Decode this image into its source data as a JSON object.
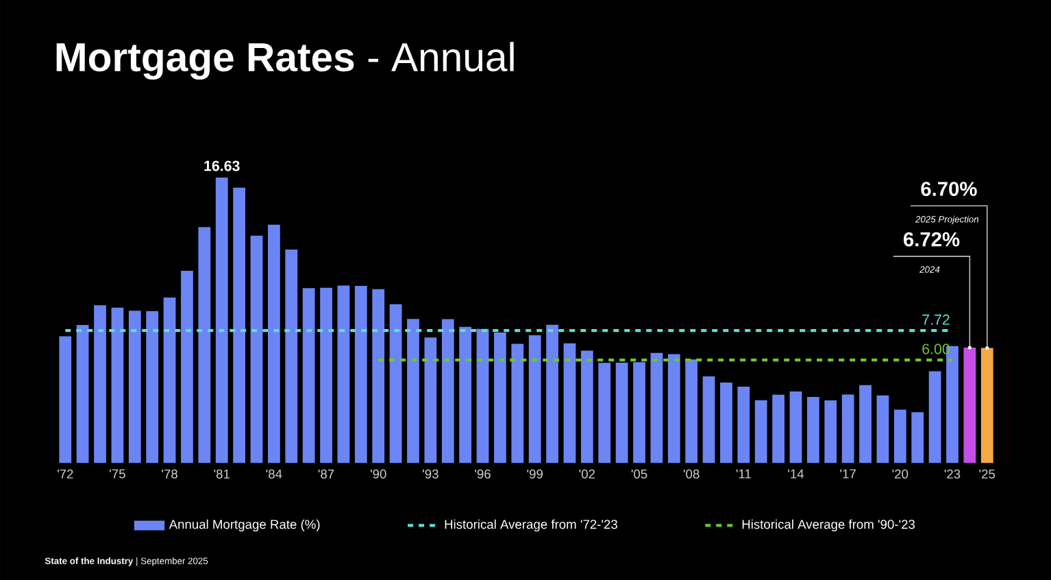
{
  "chart_data": {
    "type": "bar",
    "title": "**Mortgage Rates** - Annual",
    "categories": [
      "'72",
      null,
      null,
      "'75",
      null,
      null,
      "'78",
      null,
      null,
      "'81",
      null,
      null,
      "'84",
      null,
      null,
      "'87",
      null,
      null,
      "'90",
      null,
      null,
      "'93",
      null,
      null,
      "'96",
      null,
      null,
      "'99",
      null,
      null,
      "'02",
      null,
      null,
      "'05",
      null,
      null,
      "'08",
      null,
      null,
      "'11",
      null,
      null,
      "'14",
      null,
      null,
      "'17",
      null,
      null,
      "'20",
      null,
      null,
      "'23",
      null,
      "'25"
    ],
    "series": [
      {
        "name": "Annual Mortgage Rate (%)",
        "color": "#6b85f5",
        "colors": [
          "#6b85f5",
          "#6b85f5",
          "#6b85f5",
          "#6b85f5",
          "#6b85f5",
          "#6b85f5",
          "#6b85f5",
          "#6b85f5",
          "#6b85f5",
          "#6b85f5",
          "#6b85f5",
          "#6b85f5",
          "#6b85f5",
          "#6b85f5",
          "#6b85f5",
          "#6b85f5",
          "#6b85f5",
          "#6b85f5",
          "#6b85f5",
          "#6b85f5",
          "#6b85f5",
          "#6b85f5",
          "#6b85f5",
          "#6b85f5",
          "#6b85f5",
          "#6b85f5",
          "#6b85f5",
          "#6b85f5",
          "#6b85f5",
          "#6b85f5",
          "#6b85f5",
          "#6b85f5",
          "#6b85f5",
          "#6b85f5",
          "#6b85f5",
          "#6b85f5",
          "#6b85f5",
          "#6b85f5",
          "#6b85f5",
          "#6b85f5",
          "#6b85f5",
          "#6b85f5",
          "#6b85f5",
          "#6b85f5",
          "#6b85f5",
          "#6b85f5",
          "#6b85f5",
          "#6b85f5",
          "#6b85f5",
          "#6b85f5",
          "#6b85f5",
          "#6b85f5",
          "#c54ee8",
          "#f5a944"
        ],
        "values": [
          7.38,
          8.04,
          9.19,
          9.05,
          8.87,
          8.85,
          9.64,
          11.2,
          13.74,
          16.63,
          16.04,
          13.24,
          13.88,
          12.43,
          10.19,
          10.21,
          10.34,
          10.32,
          10.13,
          9.25,
          8.39,
          7.31,
          8.38,
          7.93,
          7.81,
          7.6,
          6.94,
          7.44,
          8.05,
          6.97,
          6.54,
          5.83,
          5.84,
          5.87,
          6.41,
          6.34,
          6.03,
          5.04,
          4.69,
          4.45,
          3.66,
          3.98,
          4.17,
          3.85,
          3.65,
          3.99,
          4.54,
          3.94,
          3.11,
          2.96,
          5.34,
          6.81,
          6.72,
          6.7
        ],
        "value_labels": [
          null,
          null,
          null,
          null,
          null,
          null,
          null,
          null,
          null,
          "16.63",
          null,
          null,
          null,
          null,
          null,
          null,
          null,
          null,
          null,
          null,
          null,
          null,
          null,
          null,
          null,
          null,
          null,
          null,
          null,
          null,
          null,
          null,
          null,
          null,
          null,
          null,
          null,
          null,
          null,
          null,
          null,
          null,
          null,
          null,
          null,
          null,
          null,
          null,
          null,
          null,
          null,
          null,
          "6.72%",
          "6.70%"
        ]
      },
      {
        "name": "Historical Average from '72-'23",
        "type": "line",
        "color": "#5fe0d0",
        "line_style": "dashed",
        "values": [
          7.72,
          7.72,
          7.72,
          7.72,
          7.72,
          7.72,
          7.72,
          7.72,
          7.72,
          7.72,
          7.72,
          7.72,
          7.72,
          7.72,
          7.72,
          7.72,
          7.72,
          7.72,
          7.72,
          7.72,
          7.72,
          7.72,
          7.72,
          7.72,
          7.72,
          7.72,
          7.72,
          7.72,
          7.72,
          7.72,
          7.72,
          7.72,
          7.72,
          7.72,
          7.72,
          7.72,
          7.72,
          7.72,
          7.72,
          7.72,
          7.72,
          7.72,
          7.72,
          7.72,
          7.72,
          7.72,
          7.72,
          7.72,
          7.72,
          7.72,
          7.72,
          7.72,
          null,
          null
        ],
        "value_labels": [
          null,
          null,
          null,
          null,
          null,
          null,
          null,
          null,
          null,
          null,
          null,
          null,
          null,
          null,
          null,
          null,
          null,
          null,
          null,
          null,
          null,
          null,
          null,
          null,
          null,
          null,
          null,
          null,
          null,
          null,
          null,
          null,
          null,
          null,
          null,
          null,
          null,
          null,
          null,
          null,
          null,
          null,
          null,
          null,
          null,
          null,
          null,
          null,
          null,
          null,
          null,
          "7.72",
          null,
          null
        ]
      },
      {
        "name": "Historical Average from '90-'23",
        "type": "line",
        "color": "#6cc72e",
        "line_style": "dashed",
        "values": [
          null,
          null,
          null,
          null,
          null,
          null,
          null,
          null,
          null,
          null,
          null,
          null,
          null,
          null,
          null,
          null,
          null,
          null,
          6.0,
          6.0,
          6.0,
          6.0,
          6.0,
          6.0,
          6.0,
          6.0,
          6.0,
          6.0,
          6.0,
          6.0,
          6.0,
          6.0,
          6.0,
          6.0,
          6.0,
          6.0,
          6.0,
          6.0,
          6.0,
          6.0,
          6.0,
          6.0,
          6.0,
          6.0,
          6.0,
          6.0,
          6.0,
          6.0,
          6.0,
          6.0,
          6.0,
          6.0,
          null,
          null
        ],
        "value_labels": [
          null,
          null,
          null,
          null,
          null,
          null,
          null,
          null,
          null,
          null,
          null,
          null,
          null,
          null,
          null,
          null,
          null,
          null,
          null,
          null,
          null,
          null,
          null,
          null,
          null,
          null,
          null,
          null,
          null,
          null,
          null,
          null,
          null,
          null,
          null,
          null,
          null,
          null,
          null,
          null,
          null,
          null,
          null,
          null,
          null,
          null,
          null,
          null,
          null,
          null,
          null,
          "6.00",
          null,
          null
        ]
      }
    ],
    "annotations": [
      "2024",
      "2025 Projection",
      "**State of the Industry** | September 2025"
    ],
    "legend": "bottom",
    "grid": false
  }
}
